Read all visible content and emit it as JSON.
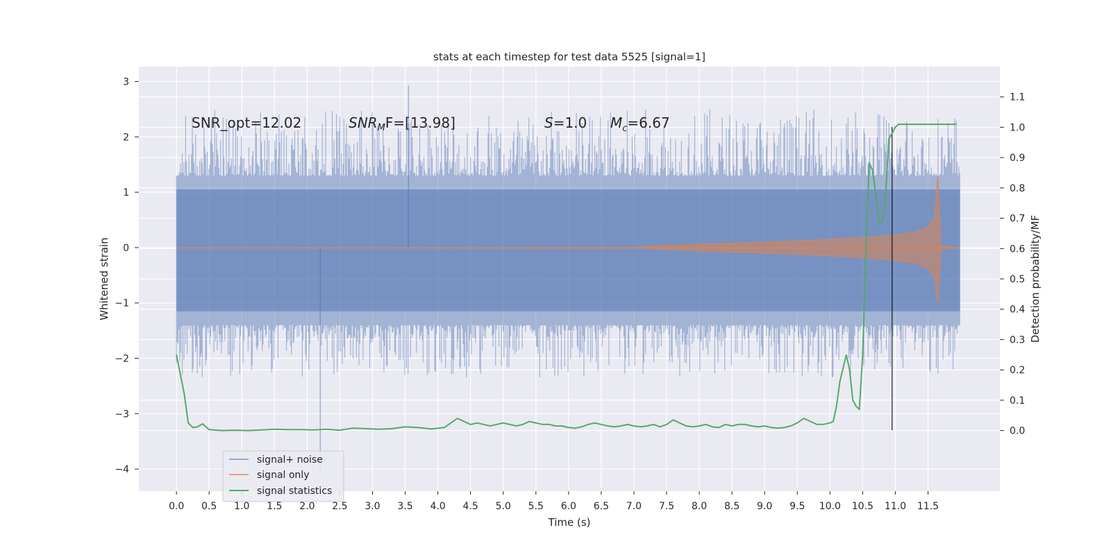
{
  "chart_data": {
    "type": "line",
    "title": "stats at each timestep for test data 5525 [signal=1]",
    "xlabel": "Time (s)",
    "ylabel": "Whitened strain",
    "y2label": "Detection probability/MF",
    "xlim": [
      -0.575,
      12.6
    ],
    "ylim": [
      -4.4,
      3.27
    ],
    "y2lim": [
      -0.2,
      1.2
    ],
    "xticks": [
      0.0,
      0.5,
      1.0,
      1.5,
      2.0,
      2.5,
      3.0,
      3.5,
      4.0,
      4.5,
      5.0,
      5.5,
      6.0,
      6.5,
      7.0,
      7.5,
      8.0,
      8.5,
      9.0,
      9.5,
      10.0,
      10.5,
      11.0,
      11.5
    ],
    "xtick_labels": [
      "0.0",
      "0.5",
      "1.0",
      "1.5",
      "2.0",
      "2.5",
      "3.0",
      "3.5",
      "4.0",
      "4.5",
      "5.0",
      "5.5",
      "6.0",
      "6.5",
      "7.0",
      "7.5",
      "8.0",
      "8.5",
      "9.0",
      "9.5",
      "10.0",
      "10.5",
      "11.0",
      "11.5"
    ],
    "yticks": [
      3,
      2,
      1,
      0,
      -1,
      -2,
      -3,
      -4
    ],
    "ytick_labels": [
      "3",
      "2",
      "1",
      "0",
      "−1",
      "−2",
      "−3",
      "−4"
    ],
    "y2ticks": [
      1.1,
      1.0,
      0.9,
      0.8,
      0.7,
      0.6,
      0.5,
      0.4,
      0.3,
      0.2,
      0.1,
      0.0
    ],
    "y2tick_labels": [
      "1.1",
      "1.0",
      "0.9",
      "0.8",
      "0.7",
      "0.6",
      "0.5",
      "0.4",
      "0.3",
      "0.2",
      "0.1",
      "0.0"
    ],
    "grid": true,
    "legend_placement": "lower-left",
    "colors": {
      "background": "#eaeaf2",
      "signal_noise": "#4c72b0",
      "signal_only": "#dd8452",
      "signal_statistics": "#55a868",
      "marker_line": "#000000"
    },
    "annotations": {
      "snr_opt": "SNR_opt=12.02",
      "snr_mf_sym": "SNR",
      "snr_mf_sub": "M",
      "snr_mf_tail": "F=[13.98]",
      "s_sym": "S",
      "s_val": "=1.0",
      "mc_sym": "M",
      "mc_sub": "c",
      "mc_val": "=6.67"
    },
    "vertical_marker": {
      "x": 10.95,
      "y_from": -3.3,
      "y_to": 2.18
    },
    "series": [
      {
        "name": "signal+ noise",
        "kind": "noise_band",
        "x_range": [
          0.0,
          11.99
        ],
        "envelope_upper": 1.3,
        "envelope_lower": -1.4,
        "extreme_upper": 2.93,
        "extreme_lower": -4.1
      },
      {
        "name": "signal only",
        "kind": "chirp_envelope",
        "x": [
          0.0,
          7.0,
          7.5,
          8.0,
          8.5,
          9.0,
          9.5,
          10.0,
          10.5,
          11.0,
          11.3,
          11.5,
          11.6,
          11.65,
          11.7,
          11.99
        ],
        "upper": [
          0.0,
          0.005,
          0.03,
          0.06,
          0.08,
          0.1,
          0.12,
          0.15,
          0.18,
          0.23,
          0.28,
          0.37,
          0.55,
          1.3,
          0.02,
          0.0
        ],
        "lower": [
          0.0,
          -0.005,
          -0.03,
          -0.06,
          -0.08,
          -0.1,
          -0.12,
          -0.15,
          -0.18,
          -0.23,
          -0.28,
          -0.37,
          -0.55,
          -1.0,
          -0.02,
          0.0
        ]
      },
      {
        "name": "signal statistics",
        "kind": "line_right_axis",
        "x": [
          0.0,
          0.12,
          0.18,
          0.25,
          0.32,
          0.4,
          0.5,
          0.7,
          0.9,
          1.1,
          1.3,
          1.5,
          1.7,
          1.9,
          2.1,
          2.3,
          2.5,
          2.7,
          2.9,
          3.1,
          3.3,
          3.5,
          3.7,
          3.9,
          4.1,
          4.2,
          4.3,
          4.4,
          4.5,
          4.6,
          4.7,
          4.8,
          4.9,
          5.0,
          5.1,
          5.2,
          5.3,
          5.4,
          5.5,
          5.6,
          5.7,
          5.8,
          5.9,
          6.0,
          6.1,
          6.2,
          6.3,
          6.4,
          6.5,
          6.6,
          6.7,
          6.8,
          6.9,
          7.0,
          7.1,
          7.2,
          7.3,
          7.4,
          7.5,
          7.6,
          7.7,
          7.8,
          7.9,
          8.0,
          8.1,
          8.2,
          8.3,
          8.4,
          8.5,
          8.6,
          8.7,
          8.8,
          8.9,
          9.0,
          9.1,
          9.2,
          9.3,
          9.4,
          9.5,
          9.6,
          9.7,
          9.8,
          9.9,
          10.0,
          10.05,
          10.1,
          10.15,
          10.25,
          10.3,
          10.35,
          10.4,
          10.45,
          10.5,
          10.55,
          10.6,
          10.65,
          10.7,
          10.75,
          10.8,
          10.85,
          10.9,
          10.95,
          11.0,
          11.05,
          11.1,
          11.2,
          11.5,
          11.7,
          11.8,
          11.93
        ],
        "y": [
          0.25,
          0.12,
          0.025,
          0.01,
          0.012,
          0.022,
          0.003,
          0.0,
          0.001,
          0.0,
          0.002,
          0.004,
          0.003,
          0.003,
          0.002,
          0.004,
          0.001,
          0.008,
          0.006,
          0.004,
          0.006,
          0.012,
          0.01,
          0.005,
          0.01,
          0.025,
          0.04,
          0.03,
          0.02,
          0.025,
          0.02,
          0.015,
          0.02,
          0.025,
          0.02,
          0.015,
          0.02,
          0.03,
          0.025,
          0.02,
          0.02,
          0.015,
          0.015,
          0.01,
          0.008,
          0.012,
          0.02,
          0.025,
          0.02,
          0.015,
          0.012,
          0.015,
          0.02,
          0.015,
          0.012,
          0.015,
          0.02,
          0.012,
          0.02,
          0.035,
          0.025,
          0.015,
          0.012,
          0.015,
          0.02,
          0.012,
          0.01,
          0.02,
          0.015,
          0.02,
          0.02,
          0.015,
          0.012,
          0.015,
          0.01,
          0.008,
          0.01,
          0.015,
          0.025,
          0.04,
          0.03,
          0.02,
          0.02,
          0.025,
          0.03,
          0.08,
          0.16,
          0.25,
          0.2,
          0.1,
          0.08,
          0.07,
          0.25,
          0.6,
          0.88,
          0.86,
          0.78,
          0.68,
          0.69,
          0.77,
          0.96,
          0.98,
          1.0,
          1.01,
          1.01,
          1.01,
          1.01,
          1.01,
          1.01,
          1.01
        ]
      }
    ]
  }
}
